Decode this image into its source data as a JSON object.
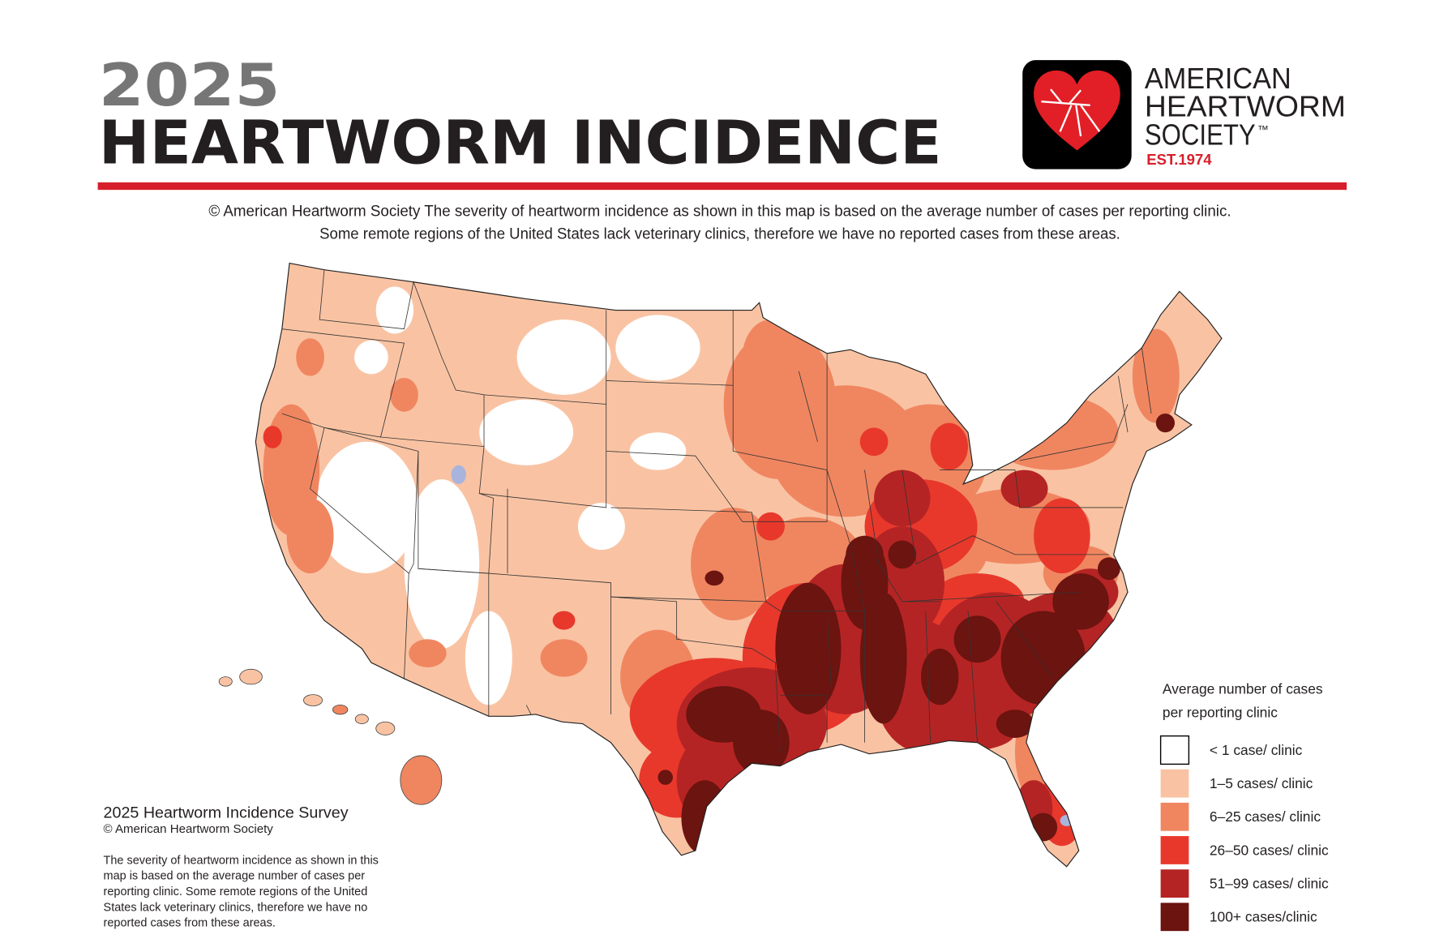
{
  "header": {
    "year": "2025",
    "title": "HEARTWORM INCIDENCE",
    "logo": {
      "line1": "AMERICAN",
      "line2": "HEARTWORM",
      "line3": "SOCIETY",
      "trademark": "™",
      "est": "EST.1974"
    }
  },
  "subtitle": {
    "lines": [
      "© American Heartworm Society The severity of heartworm incidence as shown in this map is based on the average number of cases per reporting clinic.",
      "Some remote regions of the United States lack veterinary clinics, therefore we have no reported cases from these areas."
    ]
  },
  "legend": {
    "title_lines": [
      "Average number of cases",
      "per reporting clinic"
    ],
    "items": [
      {
        "label": "< 1 case/ clinic",
        "color": "#ffffff"
      },
      {
        "label": "1–5 cases/ clinic",
        "color": "#f9c3a3"
      },
      {
        "label": "6–25 cases/ clinic",
        "color": "#f08660"
      },
      {
        "label": "26–50 cases/ clinic",
        "color": "#e8382c"
      },
      {
        "label": "51–99 cases/ clinic",
        "color": "#b52424"
      },
      {
        "label": "100+ cases/clinic",
        "color": "#6b1410"
      }
    ]
  },
  "footnote": {
    "title": "2025 Heartworm Incidence Survey",
    "copyright": "© American Heartworm Society",
    "lines": [
      "The severity of heartworm incidence as shown in this",
      "map is based on the average number of cases per",
      "reporting clinic.  Some remote regions of the United",
      "States lack veterinary clinics, therefore we have no",
      "reported cases from these areas."
    ]
  }
}
